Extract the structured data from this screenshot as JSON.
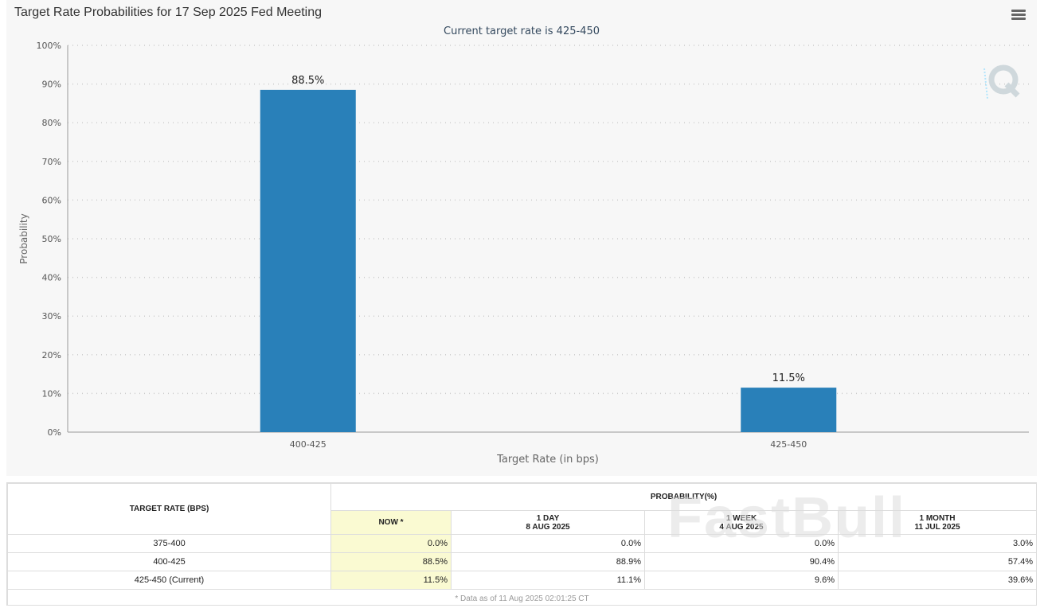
{
  "header": {
    "title": "Target Rate Probabilities for 17 Sep 2025 Fed Meeting",
    "menu_icon": "hamburger-menu-icon"
  },
  "chart_data": {
    "type": "bar",
    "title": "Target Rate Probabilities for 17 Sep 2025 Fed Meeting",
    "subtitle": "Current target rate is 425-450",
    "categories": [
      "400-425",
      "425-450"
    ],
    "values": [
      88.5,
      11.5
    ],
    "data_labels": [
      "88.5%",
      "11.5%"
    ],
    "xlabel": "Target Rate (in bps)",
    "ylabel": "Probability",
    "ylim": [
      0,
      100
    ],
    "yticks": [
      "0%",
      "10%",
      "20%",
      "30%",
      "40%",
      "50%",
      "60%",
      "70%",
      "80%",
      "90%",
      "100%"
    ],
    "grid": true,
    "bar_color": "#2980b9"
  },
  "table": {
    "col_target": "TARGET RATE (BPS)",
    "col_prob": "PROBABILITY(%)",
    "sub_now": "NOW *",
    "sub_1day": "1 DAY",
    "sub_1day_date": "8 AUG 2025",
    "sub_1week": "1 WEEK",
    "sub_1week_date": "4 AUG 2025",
    "sub_1month": "1 MONTH",
    "sub_1month_date": "11 JUL 2025",
    "rows": [
      {
        "rate": "375-400",
        "now": "0.0%",
        "day": "0.0%",
        "week": "0.0%",
        "month": "3.0%"
      },
      {
        "rate": "400-425",
        "now": "88.5%",
        "day": "88.9%",
        "week": "90.4%",
        "month": "57.4%"
      },
      {
        "rate": "425-450 (Current)",
        "now": "11.5%",
        "day": "11.1%",
        "week": "9.6%",
        "month": "39.6%"
      }
    ],
    "footnote": "* Data as of 11 Aug 2025 02:01:25 CT"
  },
  "watermark": "FastBull"
}
